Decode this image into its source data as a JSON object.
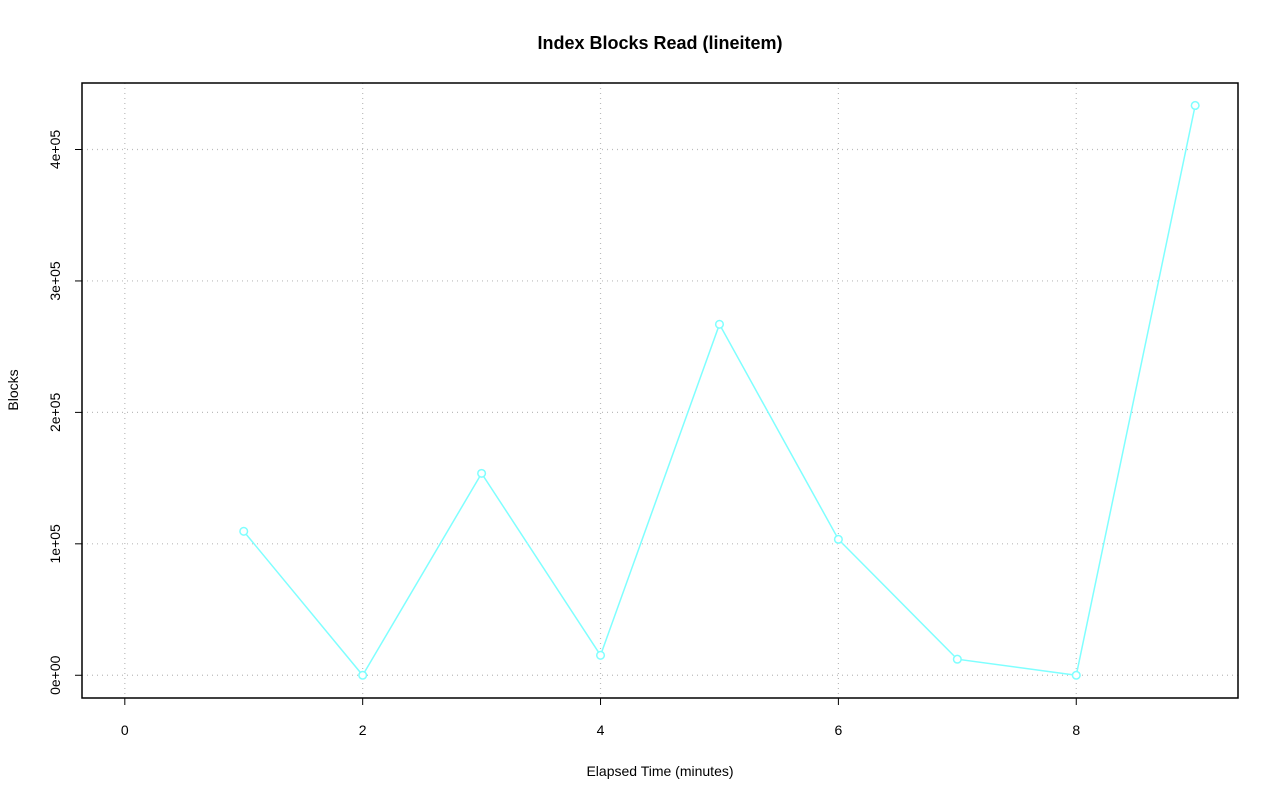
{
  "chart_data": {
    "type": "line",
    "title": "Index Blocks Read (lineitem)",
    "x_label": "Elapsed Time (minutes)",
    "y_label": "Blocks",
    "x": [
      1,
      2,
      3,
      4,
      5,
      6,
      7,
      8,
      9
    ],
    "series": [
      {
        "name": "Blocks",
        "color": "#7fffff",
        "values": [
          109500,
          0,
          153600,
          15200,
          267000,
          103400,
          12200,
          0,
          433500
        ]
      }
    ],
    "xlim": [
      -0.36,
      9.36
    ],
    "xticks": [
      0,
      2,
      4,
      6,
      8
    ],
    "ylim": [
      -17300,
      450600
    ],
    "yticks": [
      {
        "value": 0,
        "label": "0e+00"
      },
      {
        "value": 100000,
        "label": "1e+05"
      },
      {
        "value": 200000,
        "label": "2e+05"
      },
      {
        "value": 300000,
        "label": "3e+05"
      },
      {
        "value": 400000,
        "label": "4e+05"
      }
    ],
    "grid": true
  }
}
